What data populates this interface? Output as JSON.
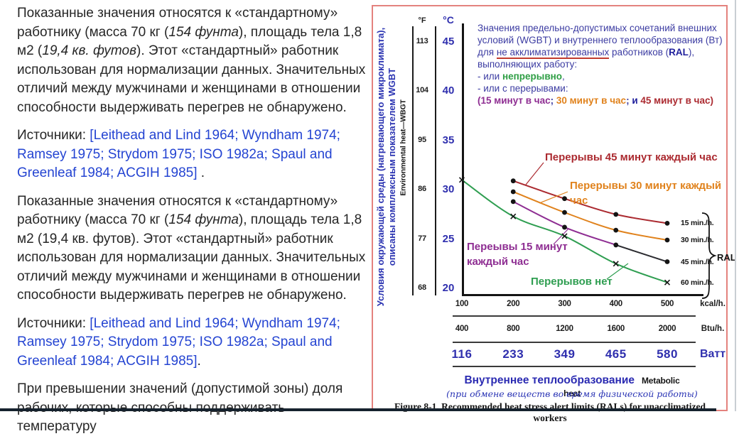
{
  "left_column": {
    "paragraphs": [
      {
        "segments": [
          {
            "t": "Показанные значения относятся к «стандартному» работнику (масса 70 кг ("
          },
          {
            "t": "154 фунта",
            "s": "i"
          },
          {
            "t": "), площадь тела 1,8 м2 ("
          },
          {
            "t": "19,4 кв. футов",
            "s": "i"
          },
          {
            "t": "). Этот «стандартный» работник использован для нормализации данных. Значительных отличий между мужчинами и женщинами в отношении способности выдерживать перегрев не обнаружено."
          }
        ]
      },
      {
        "segments": [
          {
            "t": "Источники: "
          },
          {
            "t": "[Leithead and Lind 1964; Wyndham 1974; Ramsey 1975; Strydom 1975; ISO 1982a; Spaul and Greenleaf 1984; ACGIH 1985]",
            "s": "link"
          },
          {
            "t": " ."
          }
        ]
      },
      {
        "segments": [
          {
            "t": "Показанные значения относятся к «стандартному» работнику (масса 70 кг ("
          },
          {
            "t": "154 фунта",
            "s": "i"
          },
          {
            "t": "), площадь тела 1,8 м2 (19,4 кв. футов). Этот «стандартный» работник использован для нормализации данных. Значительных отличий между мужчинами и женщинами в отношении способности выдерживать перегрев не обнаружено."
          }
        ]
      },
      {
        "segments": [
          {
            "t": "Источники: "
          },
          {
            "t": "[Leithead and Lind 1964; Wyndham 1974; Ramsey 1975; Strydom 1975; ISO 1982a; Spaul and Greenleaf 1984; ACGIH 1985]",
            "s": "link"
          },
          {
            "t": "."
          }
        ]
      },
      {
        "segments": [
          {
            "t": "При превышении значений (допустимой зоны) доля рабочих, которые способны поддерживать температуру"
          }
        ]
      }
    ]
  },
  "figure": {
    "env_label_ru_1": "Условия окружающей среды (нагревающего микроклимата),",
    "env_label_ru_2": "описаны комплексным показателем WGBT",
    "env_label_en": "Environmental heat—WBGT",
    "f_header": "°F",
    "c_header": "°C",
    "ral_label": "RAL",
    "metabolic_ru": "Внутреннее теплообразование",
    "metabolic_en": "Metabolic heat",
    "metabolic_sub": "(при обмене веществ во время физической работы)",
    "figure_caption": "Figure 8-1. Recommended heat stress alert limits (RALs) for unacclimatized workers",
    "legend_lines": [
      [
        {
          "t": "Значения предельно-допустимых сочетаний внешних"
        }
      ],
      [
        {
          "t": "условий (WGBT) и внутреннего теплообразования (Вт)"
        }
      ],
      [
        {
          "t": "для "
        },
        {
          "t": "не акклиматизированных",
          "u": true
        },
        {
          "t": " работников ("
        },
        {
          "t": "RAL",
          "b": true,
          "c": "#1f1f9c"
        },
        {
          "t": "),"
        }
      ],
      [
        {
          "t": "выполняющих работу:"
        }
      ],
      [
        {
          "t": "- или "
        },
        {
          "t": "непрерывно",
          "b": true,
          "c": "#2e9e44"
        },
        {
          "t": ","
        }
      ],
      [
        {
          "t": "- или с перерывами:"
        }
      ],
      [
        {
          "t": "(15 минут в час",
          "b": true,
          "c": "#8e2d92"
        },
        {
          "t": "; ",
          "b": true
        },
        {
          "t": "30 минут в час",
          "b": true,
          "c": "#e0821c"
        },
        {
          "t": "; ",
          "b": true
        },
        {
          "t": "и ",
          "b": true,
          "c": "#1f1f9c"
        },
        {
          "t": "45 минут в час)",
          "b": true,
          "c": "#ab2a30"
        }
      ]
    ]
  },
  "chart_data": {
    "type": "line",
    "title": "Recommended heat stress alert limits (RALs) for unacclimatized workers",
    "xlabel": "Внутреннее теплообразование (Metabolic heat)",
    "ylabel": "Условия окружающей среды — WGBT (Environmental heat — WBGT)",
    "grid": false,
    "y_axis": {
      "c_ticks": [
        45,
        40,
        35,
        30,
        25,
        20
      ],
      "f_ticks": [
        113,
        104,
        95,
        86,
        77,
        68
      ],
      "c_range": [
        20,
        45
      ]
    },
    "x_unit_rows": [
      {
        "unit": "kcal/h.",
        "values": [
          100,
          200,
          300,
          400,
          500
        ],
        "style": "plain"
      },
      {
        "unit": "Btu/h.",
        "values": [
          400,
          800,
          1200,
          1600,
          2000
        ],
        "style": "plain"
      },
      {
        "unit": "Ватт",
        "values": [
          116,
          233,
          349,
          465,
          580
        ],
        "style": "watt"
      }
    ],
    "series": [
      {
        "name": "15 min./h.",
        "label": "Перерывы 45 минут каждый час",
        "color": "#ab2a30",
        "marker": "dot",
        "x_kcal": [
          200,
          300,
          400,
          500
        ],
        "y_c": [
          30.9,
          29.1,
          27.5,
          26.6
        ]
      },
      {
        "name": "30 min./h.",
        "label": "Перерывы 30 минут каждый час",
        "color": "#e0821c",
        "marker": "dot",
        "x_kcal": [
          200,
          300,
          400,
          500
        ],
        "y_c": [
          29.8,
          27.7,
          25.9,
          24.9
        ]
      },
      {
        "name": "45 min./h.",
        "label": "Переывы 15 минут\nкаждый час",
        "color": "#8e2d92",
        "color_last_segment": "#2b2b30",
        "marker": "dot",
        "x_kcal": [
          200,
          300,
          400,
          500
        ],
        "y_c": [
          28.8,
          26.2,
          24.4,
          22.7
        ]
      },
      {
        "name": "60 min./h.",
        "label": "Перерывов нет",
        "color": "#2f9e51",
        "marker": "x",
        "x_kcal": [
          100,
          200,
          300,
          400,
          500
        ],
        "y_c": [
          31.0,
          27.3,
          25.3,
          22.5,
          20.6
        ]
      }
    ],
    "legend_position": "right",
    "ral_group": [
      "15 min./h.",
      "30 min./h.",
      "45 min./h.",
      "60 min./h."
    ]
  }
}
